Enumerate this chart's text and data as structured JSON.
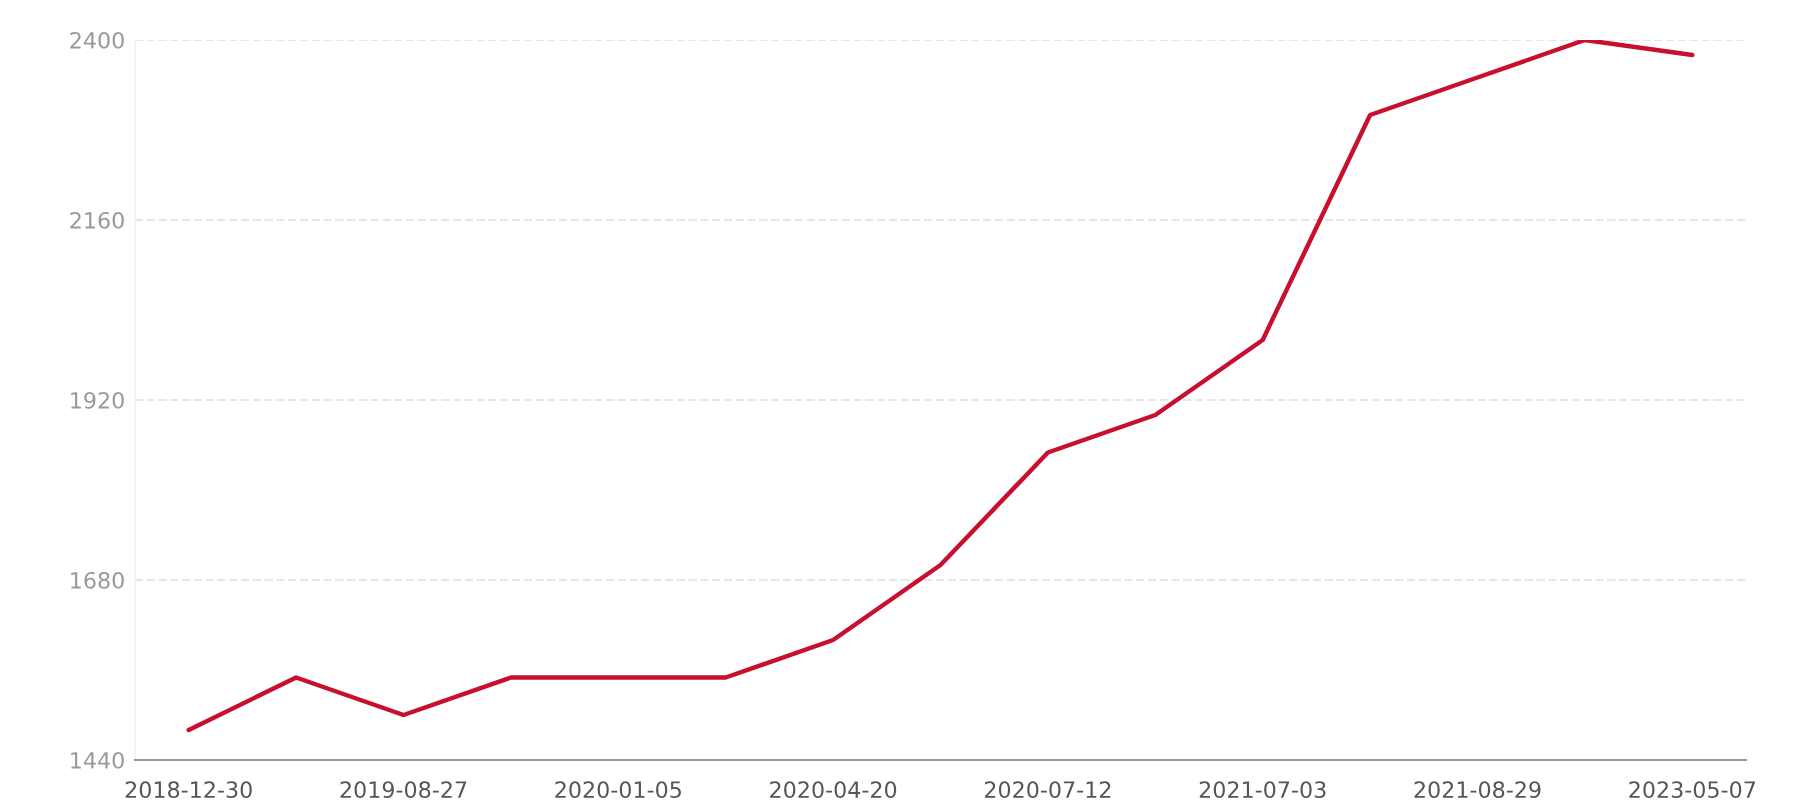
{
  "chart_data": {
    "type": "line",
    "categories": [
      "2018-12-30",
      null,
      "2019-08-27",
      null,
      "2020-01-05",
      null,
      "2020-04-20",
      null,
      "2020-07-12",
      null,
      "2021-07-03",
      null,
      "2021-08-29",
      null,
      "2023-05-07"
    ],
    "series": [
      {
        "color": "#c8102e",
        "values": [
          1480,
          1550,
          1500,
          1550,
          1550,
          1550,
          1600,
          1700,
          1850,
          1900,
          2000,
          2300,
          2350,
          2400,
          2380
        ]
      }
    ],
    "ylim": [
      1440,
      2400
    ],
    "yticks": [
      1440,
      1680,
      1920,
      2160,
      2400
    ],
    "grid": "y",
    "marker": "none",
    "line_style": "solid"
  }
}
